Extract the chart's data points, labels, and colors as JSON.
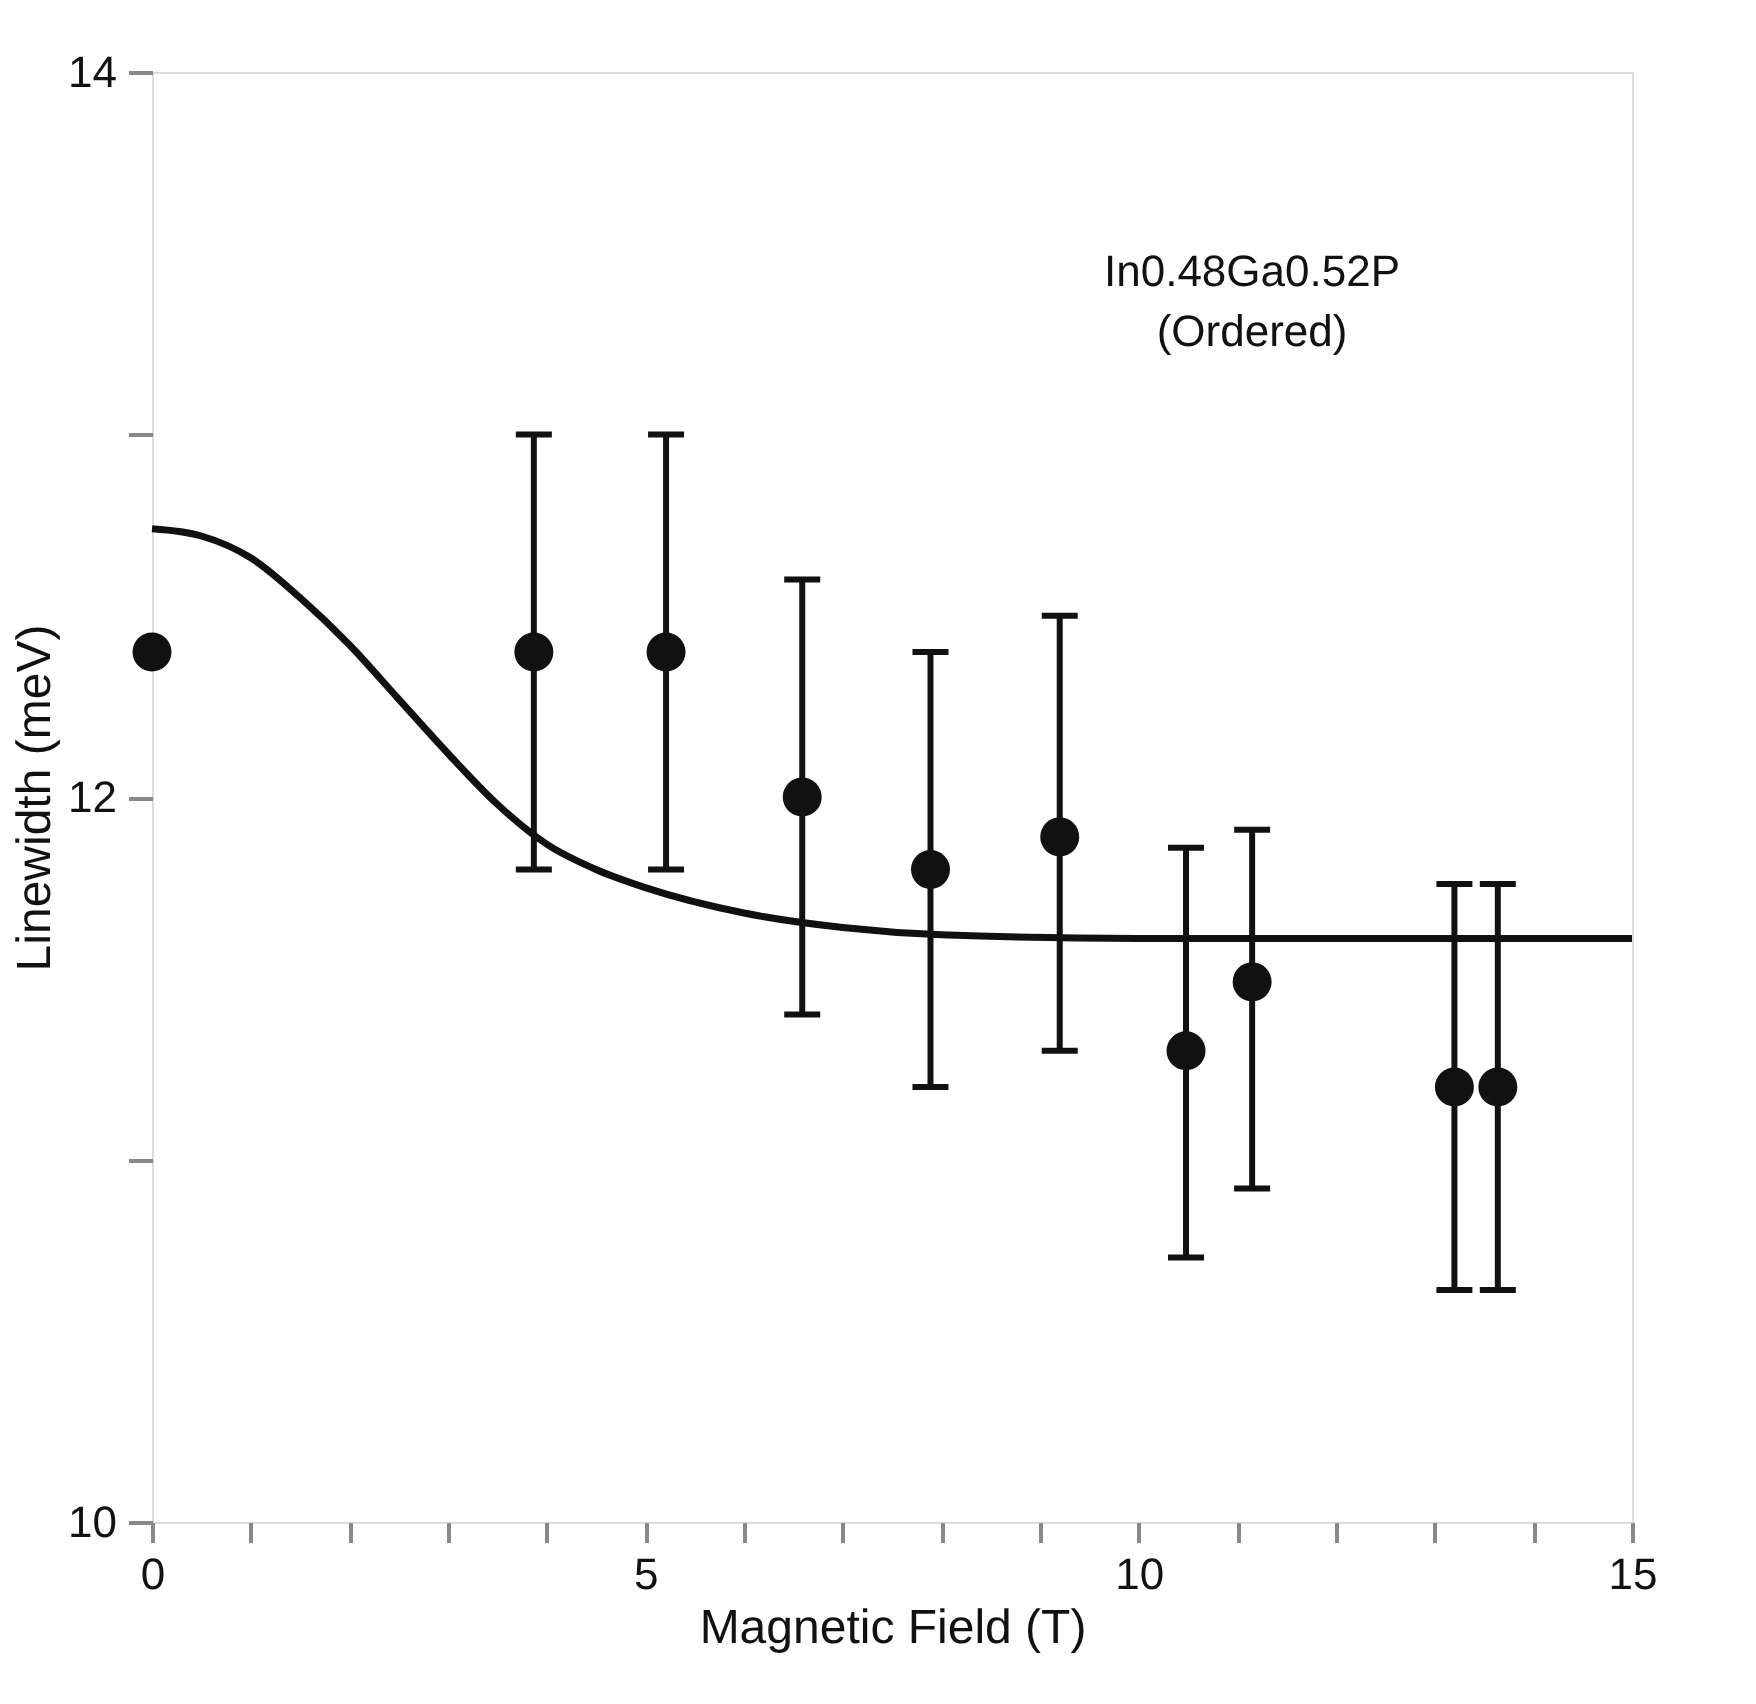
{
  "chart_data": {
    "type": "scatter",
    "xlabel": "Magnetic Field (T)",
    "ylabel": "Linewidth (meV)",
    "annotations": [
      "In0.48Ga0.52P",
      "(Ordered)"
    ],
    "xlim": [
      0,
      15
    ],
    "ylim": [
      10,
      14
    ],
    "xticks": [
      0,
      {
        "value": 1,
        "label": null
      },
      {
        "value": 2,
        "label": null
      },
      {
        "value": 3,
        "label": null
      },
      {
        "value": 4,
        "label": null
      },
      5,
      {
        "value": 6,
        "label": null
      },
      {
        "value": 7,
        "label": null
      },
      {
        "value": 8,
        "label": null
      },
      {
        "value": 9,
        "label": null
      },
      10,
      {
        "value": 11,
        "label": null
      },
      {
        "value": 12,
        "label": null
      },
      {
        "value": 13,
        "label": null
      },
      {
        "value": 14,
        "label": null
      },
      15
    ],
    "yticks": [
      10,
      {
        "value": 11,
        "label": null
      },
      12,
      {
        "value": 13,
        "label": null
      },
      14
    ],
    "grid": false,
    "legend": false,
    "series": [
      {
        "type": "scatter",
        "color": "#111111",
        "marker": "circle",
        "x": [
          0,
          3.87,
          5.21,
          6.59,
          7.89,
          9.2,
          10.48,
          11.15,
          13.2,
          13.64
        ],
        "values": [
          12.4,
          12.4,
          12.4,
          12.0,
          11.8,
          11.89,
          11.3,
          11.49,
          11.2,
          11.2
        ],
        "errors": [
          null,
          [
            11.8,
            13.0
          ],
          [
            11.8,
            13.0
          ],
          [
            11.4,
            12.6
          ],
          [
            11.2,
            12.4
          ],
          [
            11.3,
            12.5
          ],
          [
            10.73,
            11.86
          ],
          [
            10.92,
            11.91
          ],
          [
            10.64,
            11.76
          ],
          [
            10.64,
            11.76
          ]
        ]
      },
      {
        "type": "line",
        "color": "#111111",
        "line_style": "solid",
        "x": [
          0,
          0.5,
          1,
          1.5,
          2,
          2.5,
          3,
          3.5,
          4,
          4.5,
          5,
          6,
          7,
          8,
          10,
          12,
          15
        ],
        "values": [
          12.74,
          12.72,
          12.66,
          12.55,
          12.42,
          12.27,
          12.12,
          11.98,
          11.87,
          11.8,
          11.75,
          11.68,
          11.64,
          11.62,
          11.61,
          11.61,
          11.61
        ]
      }
    ]
  }
}
